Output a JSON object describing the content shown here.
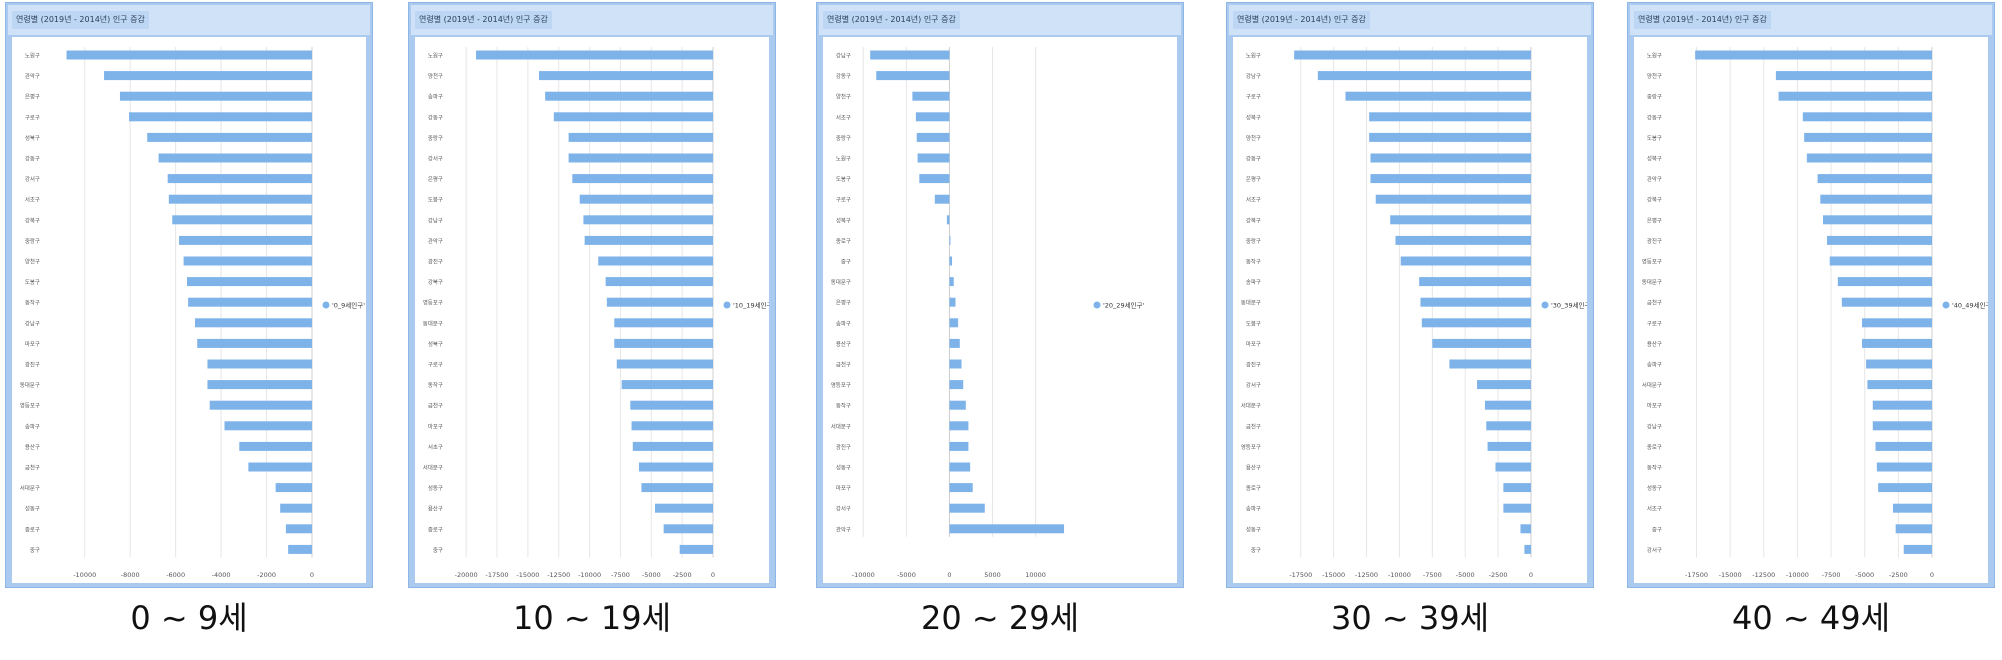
{
  "colors": {
    "bar": "#7eb3ea",
    "grid": "#e6e6e6",
    "text": "#555555",
    "frame": "#aacbef"
  },
  "chart_data": [
    {
      "type": "bar",
      "orientation": "horizontal",
      "title": "연령별 (2019년 - 2014년) 인구 증감",
      "caption": "0 ~ 9세",
      "legend": "'0_9세인구'",
      "legend_position": "right",
      "grid": true,
      "xlim": [
        -11000,
        0
      ],
      "xticks": [
        -10000,
        -8000,
        -6000,
        -4000,
        -2000,
        0
      ],
      "xtick_labels": [
        "-10000",
        "-8000",
        "-6000",
        "-4000",
        "-2000",
        "0"
      ],
      "categories": [
        "노원구",
        "관악구",
        "은평구",
        "구로구",
        "성북구",
        "강동구",
        "강서구",
        "서초구",
        "강북구",
        "중랑구",
        "양천구",
        "도봉구",
        "동작구",
        "강남구",
        "마포구",
        "광진구",
        "동대문구",
        "영등포구",
        "송파구",
        "용산구",
        "금천구",
        "서대문구",
        "성동구",
        "종로구",
        "중구"
      ],
      "values": [
        -10800,
        -9150,
        -8450,
        -8050,
        -7250,
        -6750,
        -6350,
        -6300,
        -6150,
        -5850,
        -5650,
        -5500,
        -5450,
        -5150,
        -5050,
        -4600,
        -4600,
        -4500,
        -3850,
        -3200,
        -2800,
        -1600,
        -1400,
        -1150,
        -1050
      ]
    },
    {
      "type": "bar",
      "orientation": "horizontal",
      "title": "연령별 (2019년 - 2014년) 인구 증감",
      "caption": "10 ~ 19세",
      "legend": "'10_19세인구'",
      "legend_position": "right",
      "grid": true,
      "xlim": [
        -20500,
        0
      ],
      "xticks": [
        -20000,
        -17500,
        -15000,
        -12500,
        -10000,
        -7500,
        -5000,
        -2500,
        0
      ],
      "xtick_labels": [
        "-20000",
        "-17500",
        "-15000",
        "-12500",
        "-10000",
        "-7500",
        "-5000",
        "-2500",
        "0"
      ],
      "categories": [
        "노원구",
        "양천구",
        "송파구",
        "강동구",
        "중랑구",
        "강서구",
        "은평구",
        "도봉구",
        "강남구",
        "관악구",
        "광진구",
        "강북구",
        "영등포구",
        "동대문구",
        "성북구",
        "구로구",
        "동작구",
        "금천구",
        "마포구",
        "서초구",
        "서대문구",
        "성동구",
        "용산구",
        "종로구",
        "중구"
      ],
      "values": [
        -19200,
        -14100,
        -13600,
        -12900,
        -11700,
        -11700,
        -11400,
        -10800,
        -10500,
        -10400,
        -9300,
        -8700,
        -8600,
        -8000,
        -8000,
        -7800,
        -7400,
        -6700,
        -6600,
        -6500,
        -6000,
        -5800,
        -4700,
        -4000,
        -2700
      ]
    },
    {
      "type": "bar",
      "orientation": "horizontal",
      "title": "연령별 (2019년 - 2014년) 인구 증감",
      "caption": "20 ~ 29세",
      "legend": "'20_29세인구'",
      "legend_position": "right",
      "grid": true,
      "xlim": [
        -10500,
        15500
      ],
      "xticks": [
        -10000,
        -5000,
        0,
        5000,
        10000
      ],
      "xtick_labels": [
        "-10000",
        "-5000",
        "0",
        "5000",
        "10000"
      ],
      "categories": [
        "강남구",
        "강동구",
        "양천구",
        "서초구",
        "중랑구",
        "노원구",
        "도봉구",
        "구로구",
        "성북구",
        "종로구",
        "중구",
        "동대문구",
        "은평구",
        "송파구",
        "용산구",
        "금천구",
        "영등포구",
        "동작구",
        "서대문구",
        "광진구",
        "성동구",
        "마포구",
        "강서구",
        "관악구"
      ],
      "values": [
        -9200,
        -8500,
        -4300,
        -3900,
        -3800,
        -3700,
        -3500,
        -1700,
        -300,
        100,
        300,
        500,
        700,
        1000,
        1200,
        1400,
        1600,
        1900,
        2200,
        2200,
        2400,
        2700,
        4100,
        13300
      ]
    },
    {
      "type": "bar",
      "orientation": "horizontal",
      "title": "연령별 (2019년 - 2014년) 인구 증감",
      "caption": "30 ~ 39세",
      "legend": "'30_39세인구'",
      "legend_position": "right",
      "grid": true,
      "xlim": [
        -19000,
        0
      ],
      "xticks": [
        -17500,
        -15000,
        -12500,
        -10000,
        -7500,
        -5000,
        -2500,
        0
      ],
      "xtick_labels": [
        "-17500",
        "-15000",
        "-12500",
        "-10000",
        "-7500",
        "-5000",
        "-2500",
        "0"
      ],
      "categories": [
        "노원구",
        "강남구",
        "구로구",
        "성북구",
        "양천구",
        "강동구",
        "은평구",
        "서초구",
        "강북구",
        "중랑구",
        "동작구",
        "송파구",
        "동대문구",
        "도봉구",
        "마포구",
        "광진구",
        "강서구",
        "서대문구",
        "금천구",
        "영등포구",
        "용산구",
        "종로구",
        "송파구",
        "성동구",
        "중구"
      ],
      "values": [
        -18000,
        -16200,
        -14100,
        -12300,
        -12300,
        -12200,
        -12200,
        -11800,
        -10700,
        -10300,
        -9900,
        -8500,
        -8400,
        -8300,
        -7500,
        -6200,
        -4100,
        -3500,
        -3400,
        -3300,
        -2700,
        -2100,
        -2100,
        -800,
        -500
      ]
    },
    {
      "type": "bar",
      "orientation": "horizontal",
      "title": "연령별 (2019년 - 2014년) 인구 증감",
      "caption": "40 ~ 49세",
      "legend": "'40_49세인구'",
      "legend_position": "right",
      "grid": true,
      "xlim": [
        -18800,
        0
      ],
      "xticks": [
        -17500,
        -15000,
        -12500,
        -10000,
        -7500,
        -5000,
        -2500,
        0
      ],
      "xtick_labels": [
        "-17500",
        "-15000",
        "-12500",
        "-10000",
        "-7500",
        "-5000",
        "-2500",
        "0"
      ],
      "categories": [
        "노원구",
        "양천구",
        "중랑구",
        "강동구",
        "도봉구",
        "성북구",
        "관악구",
        "강북구",
        "은평구",
        "광진구",
        "영등포구",
        "동대문구",
        "금천구",
        "구로구",
        "용산구",
        "송파구",
        "서대문구",
        "마포구",
        "강남구",
        "종로구",
        "동작구",
        "성동구",
        "서초구",
        "중구",
        "강서구"
      ],
      "values": [
        -17600,
        -11600,
        -11400,
        -9600,
        -9500,
        -9300,
        -8500,
        -8300,
        -8100,
        -7800,
        -7600,
        -7000,
        -6700,
        -5200,
        -5200,
        -4900,
        -4800,
        -4400,
        -4400,
        -4200,
        -4100,
        -4000,
        -2900,
        -2700,
        -2100
      ]
    }
  ]
}
